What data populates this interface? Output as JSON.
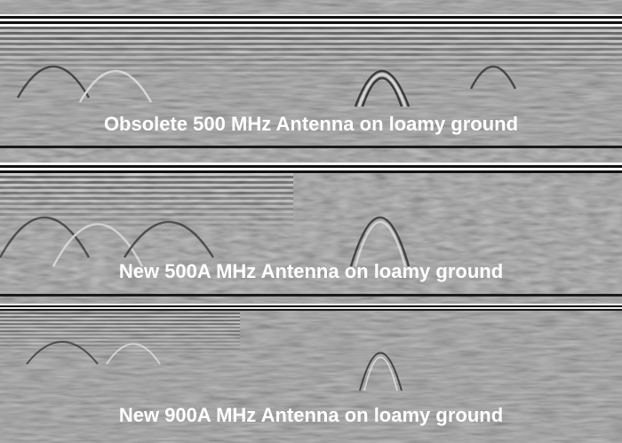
{
  "panels": [
    {
      "label": "Obsolete 500 MHz Antenna on loamy ground"
    },
    {
      "label": "New 500A MHz Antenna on loamy ground"
    },
    {
      "label": "New 900A MHz Antenna on loamy ground"
    }
  ]
}
